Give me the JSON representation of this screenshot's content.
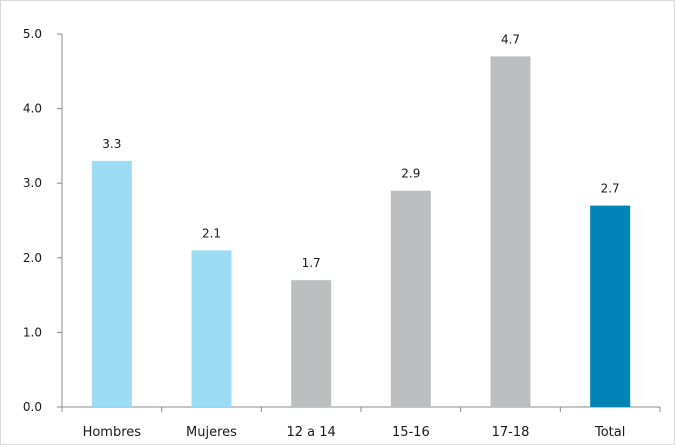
{
  "chart_data": {
    "type": "bar",
    "title": "",
    "xlabel": "",
    "ylabel": "",
    "categories": [
      "Hombres",
      "Mujeres",
      "12 a 14",
      "15-16",
      "17-18",
      "Total"
    ],
    "values": [
      3.3,
      2.1,
      1.7,
      2.9,
      4.7,
      2.7
    ],
    "value_labels": [
      "3.3",
      "2.1",
      "1.7",
      "2.9",
      "4.7",
      "2.7"
    ],
    "colors": [
      "#9ddcf5",
      "#9ddcf5",
      "#bcbec0",
      "#bcbec0",
      "#bcbec0",
      "#0085b8"
    ],
    "ylim": [
      0,
      5
    ],
    "yticks": [
      0,
      1,
      2,
      3,
      4,
      5
    ],
    "ytick_labels": [
      "0.0",
      "1.0",
      "2.0",
      "3.0",
      "4.0",
      "5.0"
    ],
    "grid": false,
    "legend": "none"
  }
}
